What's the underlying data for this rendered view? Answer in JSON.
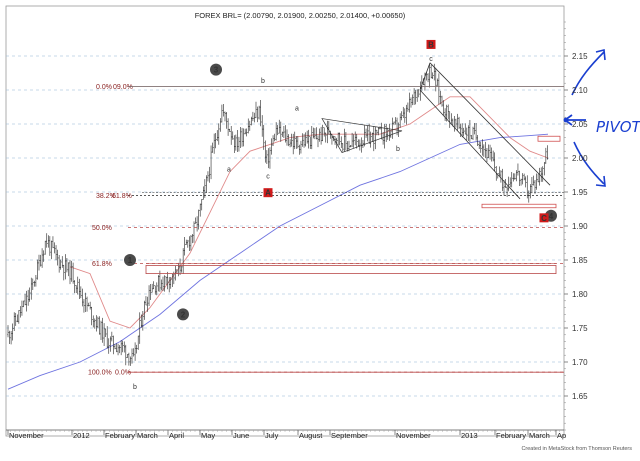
{
  "chart_data": {
    "type": "line",
    "title": "FOREX BRL= (2.00790, 2.01900, 2.00250, 2.01400, +0.00650)",
    "xlabel": "",
    "ylabel": "",
    "ylim": [
      1.6,
      2.2
    ],
    "y_ticks": [
      1.65,
      1.7,
      1.75,
      1.8,
      1.85,
      1.9,
      1.95,
      2.0,
      2.05,
      2.1,
      2.15
    ],
    "x_ticks": [
      "November",
      "2012",
      "February",
      "March",
      "April",
      "May",
      "June",
      "July",
      "August",
      "September",
      "November",
      "2013",
      "February",
      "March",
      "Ap"
    ],
    "price_series": [
      [
        "2011-11",
        1.74
      ],
      [
        "2011-12",
        1.8
      ],
      [
        "2012-01",
        1.78
      ],
      [
        "2012-02",
        1.71
      ],
      [
        "2012-03",
        1.82
      ],
      [
        "2012-04",
        1.86
      ],
      [
        "2012-05",
        2.05
      ],
      [
        "2012-06",
        2.05
      ],
      [
        "2012-07",
        2.03
      ],
      [
        "2012-08",
        2.04
      ],
      [
        "2012-09",
        2.02
      ],
      [
        "2012-10",
        2.03
      ],
      [
        "2012-11",
        2.12
      ],
      [
        "2013-01",
        2.03
      ],
      [
        "2013-02",
        1.97
      ],
      [
        "2013-03",
        2.01
      ]
    ],
    "fib_levels": [
      {
        "label": "0.0%",
        "value": 2.105
      },
      {
        "label": "38.2%",
        "value": 1.945
      },
      {
        "label": "50.0%",
        "value": 1.898
      },
      {
        "label": "61.8%",
        "value": 1.845
      },
      {
        "label": "100.0%",
        "value": 1.685
      }
    ],
    "fib_suffix": [
      "09.0%",
      "61.8%",
      "0.0%"
    ],
    "wave_markers": [
      "3",
      "1",
      "2",
      "4"
    ],
    "wave_boxes": [
      "A",
      "B",
      "C"
    ],
    "wave_letters": [
      "b",
      "c",
      "a",
      "a",
      "b",
      "c",
      "b"
    ],
    "annotations": {
      "pivot": "PIVOT"
    },
    "footer": "Created in MetaStock from Thomson Reuters",
    "grid": true,
    "legend": "none"
  }
}
